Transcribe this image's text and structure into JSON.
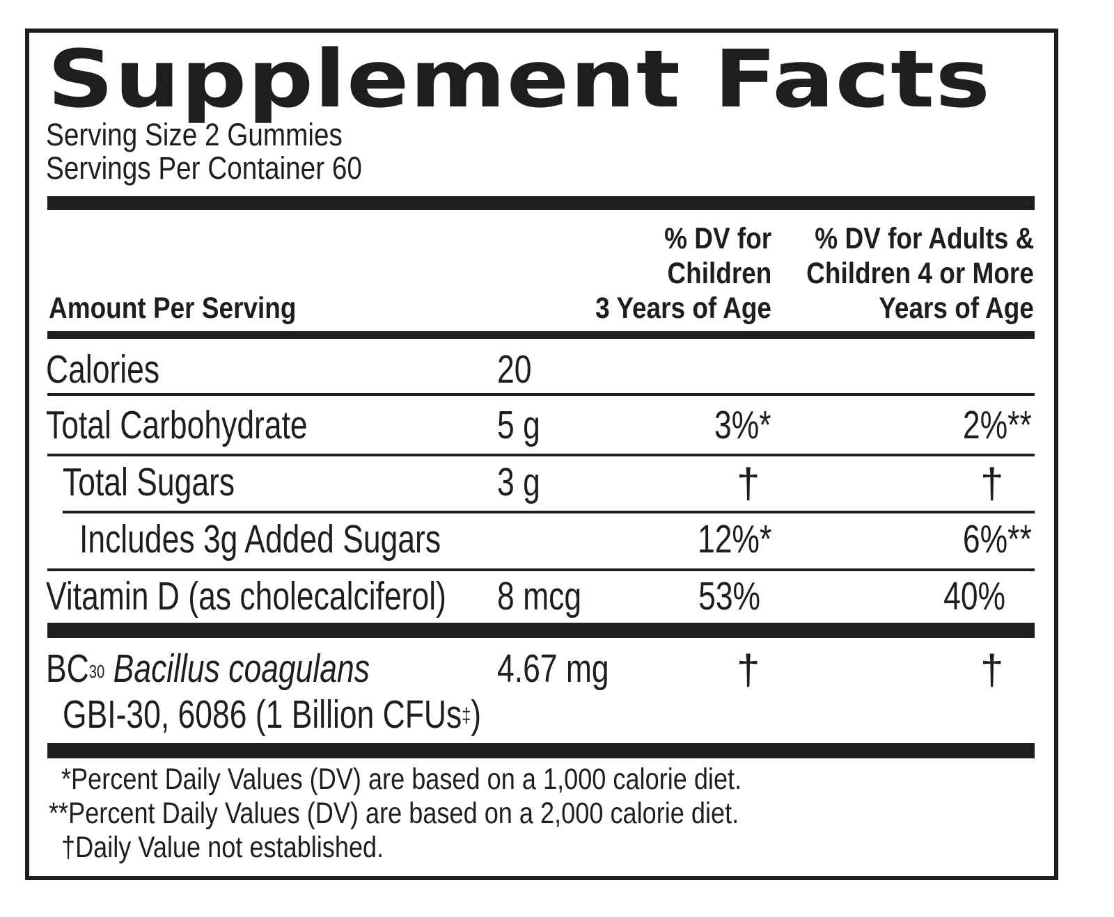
{
  "title": "Supplement Facts",
  "serving_size": "Serving Size 2 Gummies",
  "servings_per_container": "Servings Per Container 60",
  "header": {
    "amount_per_serving": "Amount Per Serving",
    "dv_children_line1": "% DV for",
    "dv_children_line2": "Children",
    "dv_children_line3": "3 Years of Age",
    "dv_adults_line1": "% DV for Adults &",
    "dv_adults_line2": "Children 4 or More",
    "dv_adults_line3": "Years of Age"
  },
  "rows": [
    {
      "name": "Calories",
      "amount": "20",
      "dv_children": "",
      "dv_adults": ""
    },
    {
      "name": "Total Carbohydrate",
      "amount": "5 g",
      "dv_children": "3%*",
      "dv_adults": "2%**"
    },
    {
      "name": "Total Sugars",
      "amount": "3 g",
      "dv_children": "†",
      "dv_adults": "†"
    },
    {
      "name": "Includes 3g Added Sugars",
      "amount": "",
      "dv_children": "12%*",
      "dv_adults": "6%**"
    },
    {
      "name": "Vitamin D (as cholecalciferol)",
      "amount": "8 mcg",
      "dv_children": "53%",
      "dv_adults": "40%"
    }
  ],
  "probiotic": {
    "prefix": "BC",
    "superscript": "30",
    "species": "Bacillus coagulans",
    "strain": "GBI-30, 6086 (1 Billion CFUs",
    "strain_mark": "‡",
    "strain_close": ")",
    "amount": "4.67 mg",
    "dv_children": "†",
    "dv_adults": "†"
  },
  "footnotes": [
    "*Percent Daily Values (DV) are based on a 1,000 calorie diet.",
    "**Percent Daily Values (DV) are based on a 2,000 calorie diet.",
    "†Daily Value not established."
  ]
}
